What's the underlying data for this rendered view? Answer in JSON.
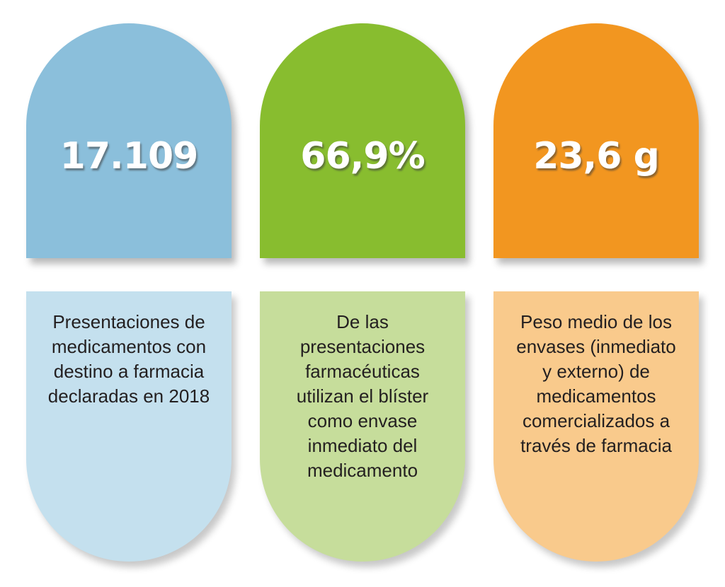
{
  "cards": [
    {
      "value": "17.109",
      "description": "Presentaciones de\nmedicamentos con\ndestino a farmacia\ndeclaradas en 2018",
      "color_top": "#8bbfdb",
      "color_bottom": "#c4e0ee"
    },
    {
      "value": "66,9%",
      "description": "De las\npresentaciones\nfarmacéuticas\nutilizan el blíster\ncomo envase\ninmediato del\nmedicamento",
      "color_top": "#88bd2f",
      "color_bottom": "#c6dd9b"
    },
    {
      "value": "23,6 g",
      "description": "Peso medio de los\nenvases (inmediato\ny externo) de\nmedicamentos\ncomercializados a\ntravés de farmacia",
      "color_top": "#f29620",
      "color_bottom": "#f9ca8c"
    }
  ]
}
